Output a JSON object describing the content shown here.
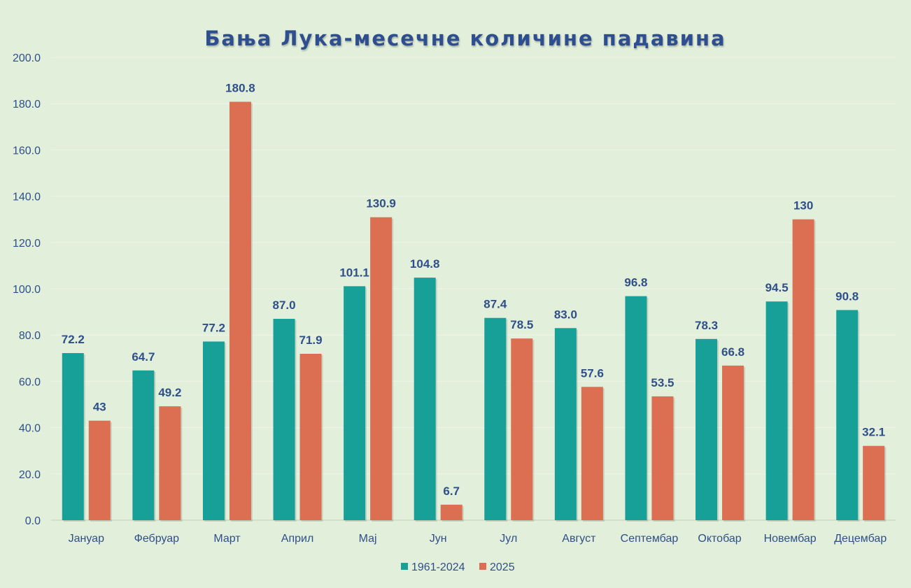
{
  "chart_data": {
    "type": "bar",
    "title": "Бања Лука-месечне количине падавина",
    "xlabel": "",
    "ylabel": "",
    "ylim": [
      0,
      200
    ],
    "yticks": [
      "0.0",
      "20.0",
      "40.0",
      "60.0",
      "80.0",
      "100.0",
      "120.0",
      "140.0",
      "160.0",
      "180.0",
      "200.0"
    ],
    "grid": true,
    "legend_position": "bottom",
    "categories": [
      "Јануар",
      "Фебруар",
      "Март",
      "Април",
      "Мај",
      "Јун",
      "Јул",
      "Август",
      "Септембар",
      "Октобар",
      "Новембар",
      "Децембар"
    ],
    "series": [
      {
        "name": "1961-2024",
        "color": "#17a098",
        "values": [
          72.2,
          64.7,
          77.2,
          87.0,
          101.1,
          104.8,
          87.4,
          83.0,
          96.8,
          78.3,
          94.5,
          90.8
        ],
        "labels": [
          "72.2",
          "64.7",
          "77.2",
          "87.0",
          "101.1",
          "104.8",
          "87.4",
          "83.0",
          "96.8",
          "78.3",
          "94.5",
          "90.8"
        ]
      },
      {
        "name": "2025",
        "color": "#dc6e52",
        "values": [
          43,
          49.2,
          180.8,
          71.9,
          130.9,
          6.7,
          78.5,
          57.6,
          53.5,
          66.8,
          130,
          32.1
        ],
        "labels": [
          "43",
          "49.2",
          "180.8",
          "71.9",
          "130.9",
          "6.7",
          "78.5",
          "57.6",
          "53.5",
          "66.8",
          "130",
          "32.1"
        ]
      }
    ]
  }
}
